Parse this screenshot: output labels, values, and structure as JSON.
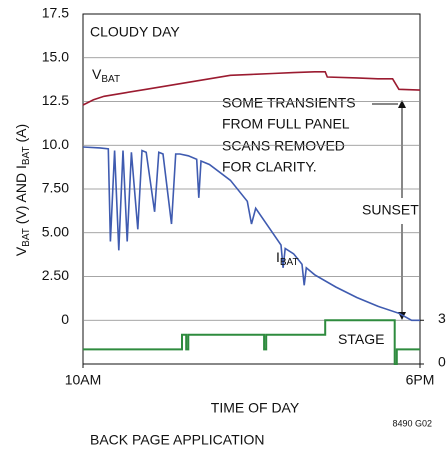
{
  "chart_data": {
    "type": "line",
    "title": "CLOUDY DAY",
    "xlabel": "TIME OF DAY",
    "ylabel": "VBAT (V) AND IBAT (A)",
    "annotations": [
      "SOME TRANSIENTS",
      "FROM FULL PANEL",
      "SCANS REMOVED",
      "FOR CLARITY.",
      "SUNSET"
    ],
    "figure_code": "8490 G02",
    "footer": "BACK PAGE APPLICATION",
    "xlim": [
      10,
      18
    ],
    "xticks": [
      {
        "value": 10,
        "label": "10AM"
      },
      {
        "value": 18,
        "label": "6PM"
      }
    ],
    "ylim": [
      -2.5,
      17.5
    ],
    "yticks": [
      {
        "value": 17.5,
        "label": "17.5"
      },
      {
        "value": 15,
        "label": "15.0"
      },
      {
        "value": 12.5,
        "label": "12.5"
      },
      {
        "value": 10,
        "label": "10.0"
      },
      {
        "value": 7.5,
        "label": "7.50"
      },
      {
        "value": 5,
        "label": "5.00"
      },
      {
        "value": 2.5,
        "label": "2.50"
      },
      0
    ],
    "y2lim": [
      0,
      24
    ],
    "y2ticks": [
      0,
      3
    ],
    "grid": true,
    "series": [
      {
        "name": "VBAT",
        "color": "#9b1b30",
        "x": [
          10,
          10.25,
          10.5,
          11,
          11.5,
          12,
          12.5,
          13,
          13.5,
          14,
          14.5,
          15,
          15.5,
          15.75,
          15.8,
          16.5,
          17,
          17.35,
          17.5,
          18
        ],
        "values": [
          12.3,
          12.6,
          12.8,
          13.0,
          13.2,
          13.4,
          13.6,
          13.8,
          14.0,
          14.05,
          14.1,
          14.15,
          14.2,
          14.2,
          13.9,
          13.85,
          13.8,
          13.8,
          13.2,
          13.15
        ]
      },
      {
        "name": "IBAT",
        "color": "#3f5bb0",
        "x": [
          10,
          10.4,
          10.6,
          10.65,
          10.75,
          10.85,
          10.95,
          11.05,
          11.15,
          11.3,
          11.4,
          11.5,
          11.7,
          11.8,
          11.9,
          12.1,
          12.2,
          12.3,
          12.5,
          12.7,
          12.75,
          12.8,
          13,
          13.5,
          13.9,
          14,
          14.1,
          14.5,
          14.7,
          14.75,
          14.8,
          15,
          15.2,
          15.25,
          15.3,
          15.5,
          16,
          16.5,
          17,
          17.5,
          17.8,
          18
        ],
        "values": [
          9.9,
          9.85,
          9.8,
          4.5,
          9.7,
          4,
          9.7,
          4.5,
          9.6,
          5.2,
          9.7,
          9.6,
          6.2,
          9.6,
          9.5,
          5.5,
          9.5,
          9.5,
          9.4,
          9.2,
          7,
          9.1,
          8.9,
          8.0,
          6.8,
          5.5,
          6.4,
          5.0,
          4.3,
          3.0,
          4.1,
          3.8,
          3.2,
          2.0,
          3.0,
          2.6,
          1.9,
          1.3,
          0.8,
          0.4,
          0,
          0
        ]
      },
      {
        "name": "STAGE",
        "color": "#2e8b3e",
        "axis": "y2",
        "x": [
          10,
          12.35,
          12.35,
          12.45,
          12.45,
          12.5,
          12.5,
          14.3,
          14.3,
          14.35,
          14.35,
          15.75,
          15.75,
          17.4,
          17.4,
          17.45,
          17.45,
          18
        ],
        "values": [
          1,
          1,
          2,
          2,
          1,
          1,
          2,
          2,
          1,
          1,
          2,
          2,
          3,
          3,
          0,
          0,
          1,
          1
        ]
      }
    ]
  }
}
